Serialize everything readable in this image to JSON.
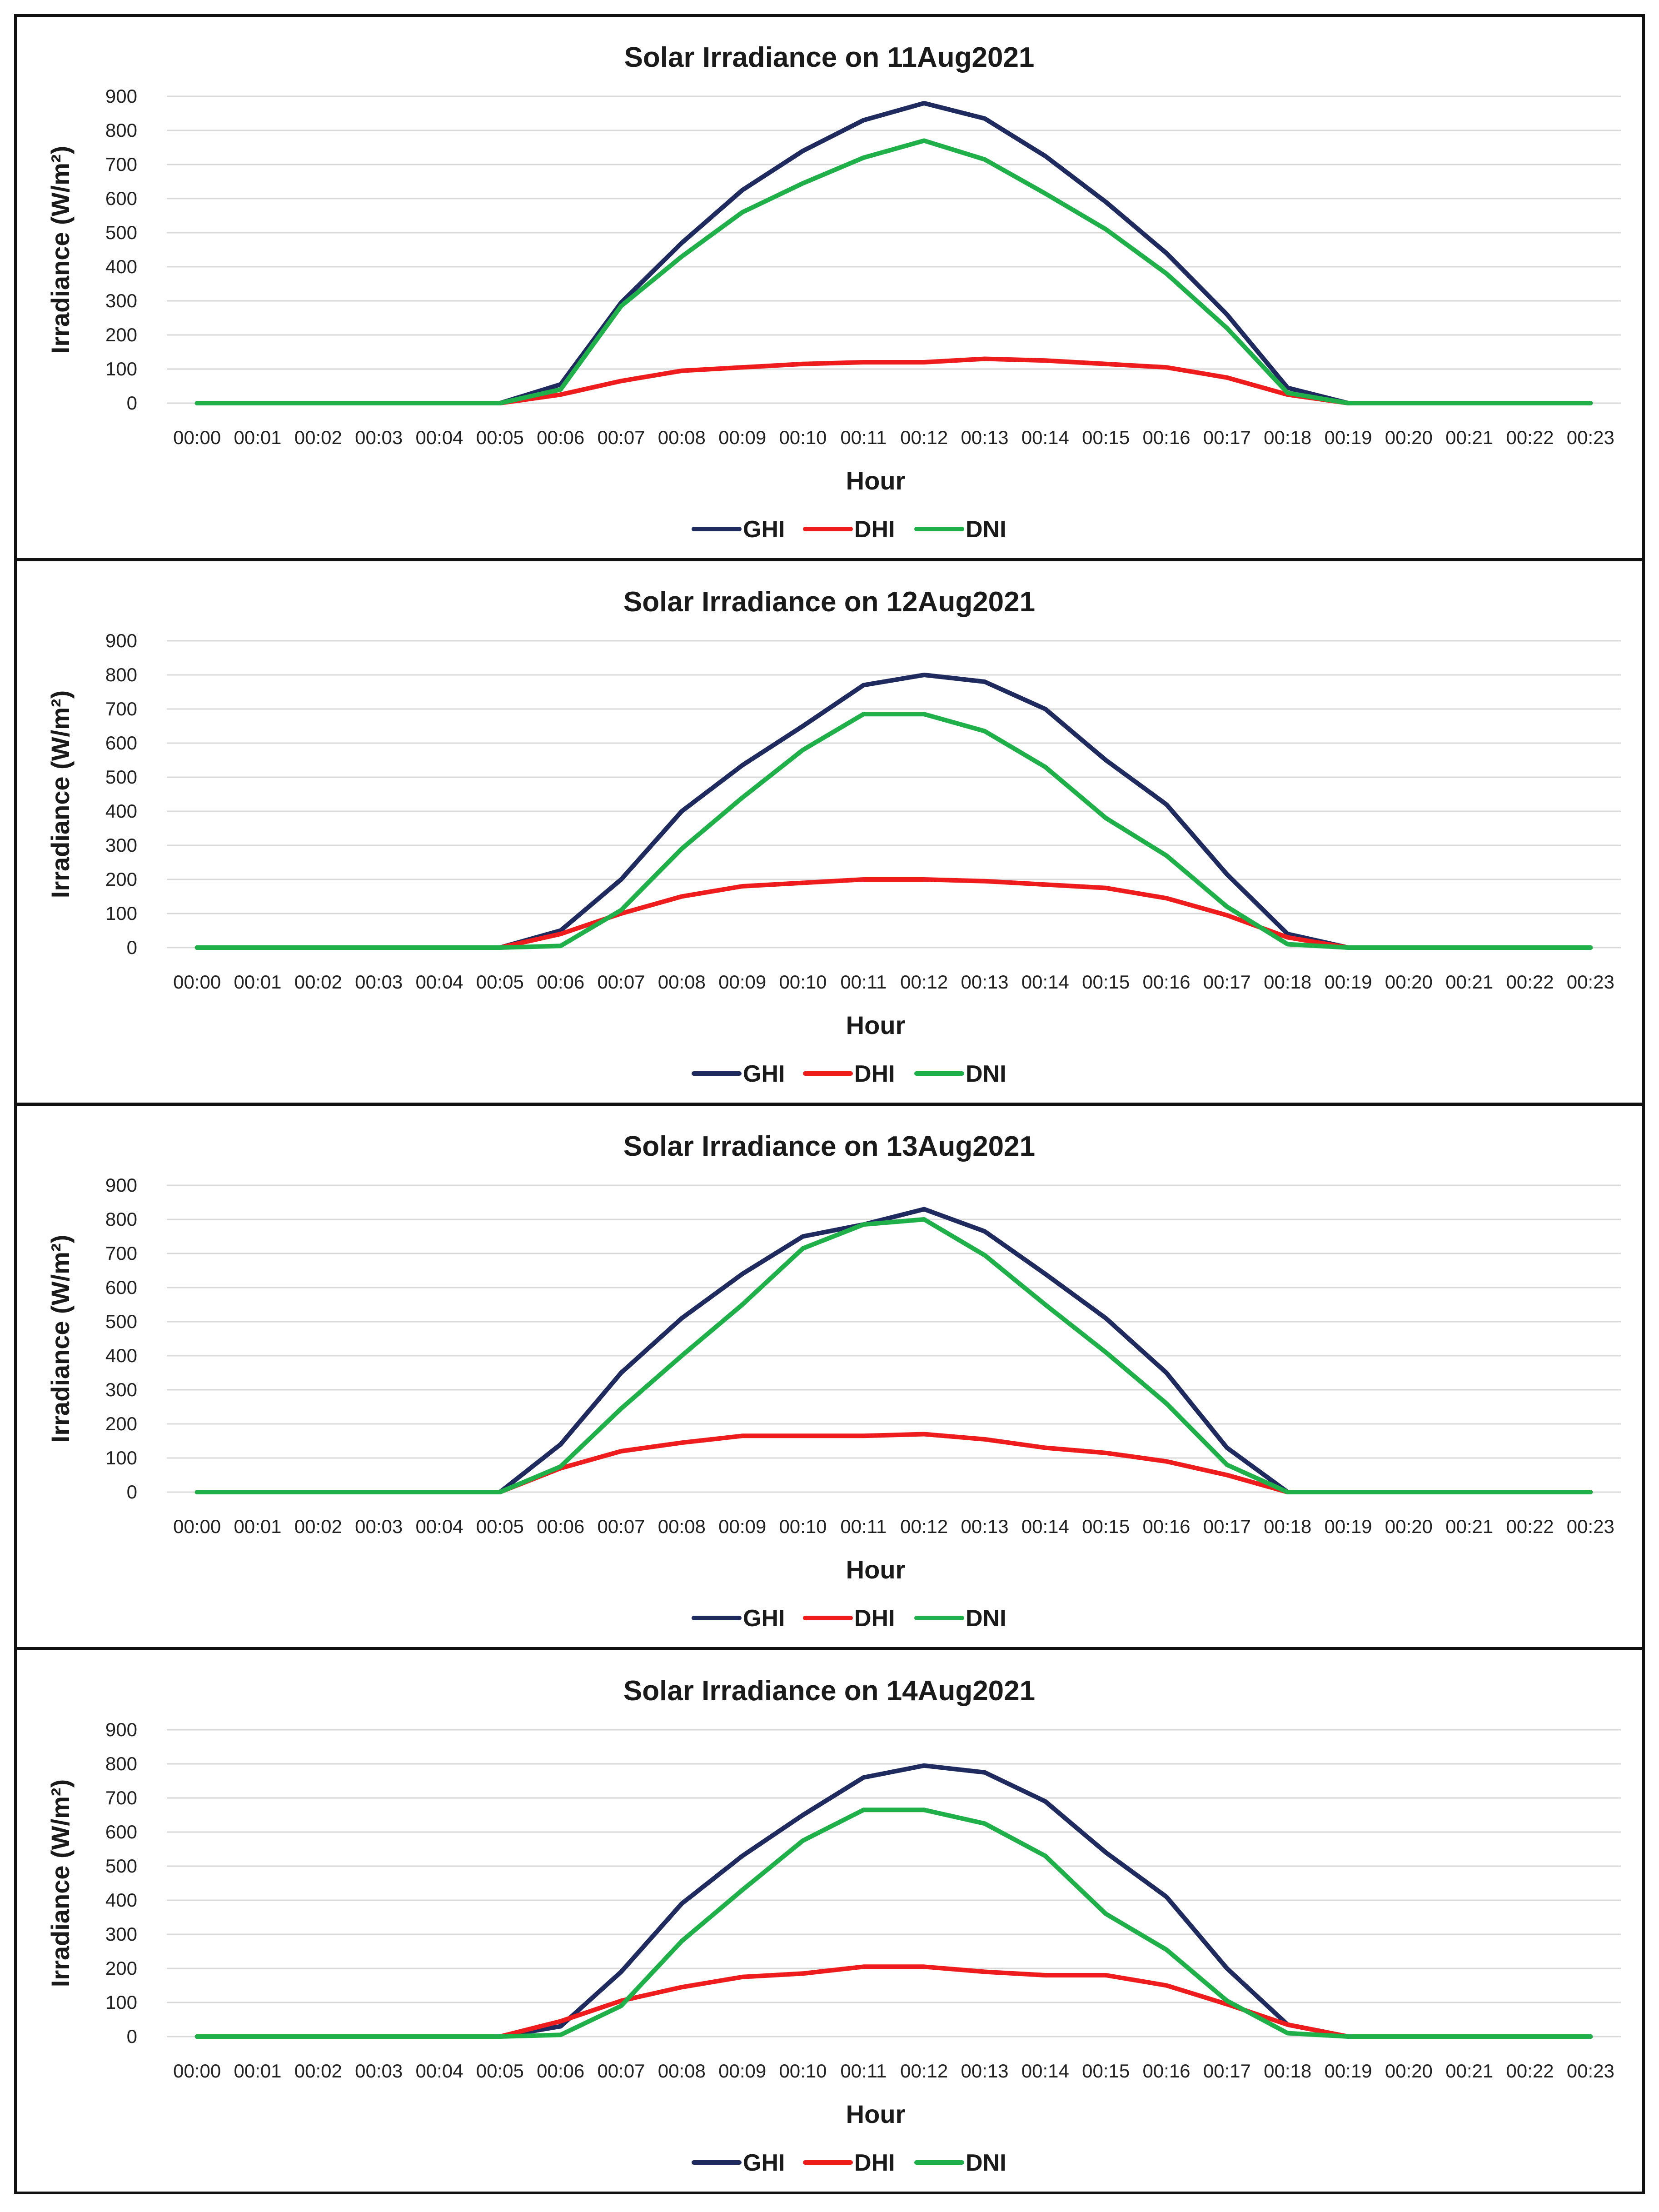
{
  "chart_data": [
    {
      "type": "line",
      "title": "Solar Irradiance on 11Aug2021",
      "xlabel": "Hour",
      "ylabel": "Irradiance (W/m²)",
      "ylim": [
        0,
        900
      ],
      "yticks": [
        "0",
        "100",
        "200",
        "300",
        "400",
        "500",
        "600",
        "700",
        "800",
        "900"
      ],
      "grid": true,
      "legend_position": "bottom-center",
      "categories": [
        "00:00",
        "00:01",
        "00:02",
        "00:03",
        "00:04",
        "00:05",
        "00:06",
        "00:07",
        "00:08",
        "00:09",
        "00:10",
        "00:11",
        "00:12",
        "00:13",
        "00:14",
        "00:15",
        "00:16",
        "00:17",
        "00:18",
        "00:19",
        "00:20",
        "00:21",
        "00:22",
        "00:23"
      ],
      "series": [
        {
          "name": "GHI",
          "color": "#1f2a5e",
          "values": [
            0,
            0,
            0,
            0,
            0,
            0,
            55,
            295,
            470,
            625,
            740,
            830,
            880,
            835,
            725,
            590,
            440,
            260,
            45,
            0,
            0,
            0,
            0,
            0
          ]
        },
        {
          "name": "DHI",
          "color": "#ee1c1c",
          "values": [
            0,
            0,
            0,
            0,
            0,
            0,
            25,
            65,
            95,
            105,
            115,
            120,
            120,
            130,
            125,
            115,
            105,
            75,
            25,
            0,
            0,
            0,
            0,
            0
          ]
        },
        {
          "name": "DNI",
          "color": "#1fb04a",
          "values": [
            0,
            0,
            0,
            0,
            0,
            0,
            40,
            285,
            430,
            560,
            645,
            720,
            770,
            715,
            615,
            510,
            380,
            220,
            30,
            0,
            0,
            0,
            0,
            0
          ]
        }
      ]
    },
    {
      "type": "line",
      "title": "Solar Irradiance on 12Aug2021",
      "xlabel": "Hour",
      "ylabel": "Irradiance (W/m²)",
      "ylim": [
        0,
        900
      ],
      "yticks": [
        "0",
        "100",
        "200",
        "300",
        "400",
        "500",
        "600",
        "700",
        "800",
        "900"
      ],
      "grid": true,
      "legend_position": "bottom-center",
      "categories": [
        "00:00",
        "00:01",
        "00:02",
        "00:03",
        "00:04",
        "00:05",
        "00:06",
        "00:07",
        "00:08",
        "00:09",
        "00:10",
        "00:11",
        "00:12",
        "00:13",
        "00:14",
        "00:15",
        "00:16",
        "00:17",
        "00:18",
        "00:19",
        "00:20",
        "00:21",
        "00:22",
        "00:23"
      ],
      "series": [
        {
          "name": "GHI",
          "color": "#1f2a5e",
          "values": [
            0,
            0,
            0,
            0,
            0,
            0,
            50,
            200,
            400,
            535,
            650,
            770,
            800,
            780,
            700,
            550,
            420,
            215,
            40,
            0,
            0,
            0,
            0,
            0
          ]
        },
        {
          "name": "DHI",
          "color": "#ee1c1c",
          "values": [
            0,
            0,
            0,
            0,
            0,
            0,
            40,
            100,
            150,
            180,
            190,
            200,
            200,
            195,
            185,
            175,
            145,
            95,
            30,
            0,
            0,
            0,
            0,
            0
          ]
        },
        {
          "name": "DNI",
          "color": "#1fb04a",
          "values": [
            0,
            0,
            0,
            0,
            0,
            0,
            5,
            110,
            290,
            440,
            580,
            685,
            685,
            635,
            530,
            380,
            270,
            120,
            10,
            0,
            0,
            0,
            0,
            0
          ]
        }
      ]
    },
    {
      "type": "line",
      "title": "Solar Irradiance on 13Aug2021",
      "xlabel": "Hour",
      "ylabel": "Irradiance (W/m²)",
      "ylim": [
        0,
        900
      ],
      "yticks": [
        "0",
        "100",
        "200",
        "300",
        "400",
        "500",
        "600",
        "700",
        "800",
        "900"
      ],
      "grid": true,
      "legend_position": "bottom-center",
      "categories": [
        "00:00",
        "00:01",
        "00:02",
        "00:03",
        "00:04",
        "00:05",
        "00:06",
        "00:07",
        "00:08",
        "00:09",
        "00:10",
        "00:11",
        "00:12",
        "00:13",
        "00:14",
        "00:15",
        "00:16",
        "00:17",
        "00:18",
        "00:19",
        "00:20",
        "00:21",
        "00:22",
        "00:23"
      ],
      "series": [
        {
          "name": "GHI",
          "color": "#1f2a5e",
          "values": [
            0,
            0,
            0,
            0,
            0,
            0,
            140,
            350,
            510,
            640,
            750,
            785,
            830,
            765,
            640,
            510,
            350,
            130,
            0,
            0,
            0,
            0,
            0,
            0
          ]
        },
        {
          "name": "DHI",
          "color": "#ee1c1c",
          "values": [
            0,
            0,
            0,
            0,
            0,
            0,
            70,
            120,
            145,
            165,
            165,
            165,
            170,
            155,
            130,
            115,
            90,
            50,
            0,
            0,
            0,
            0,
            0,
            0
          ]
        },
        {
          "name": "DNI",
          "color": "#1fb04a",
          "values": [
            0,
            0,
            0,
            0,
            0,
            0,
            75,
            245,
            400,
            550,
            715,
            785,
            800,
            695,
            550,
            410,
            260,
            80,
            0,
            0,
            0,
            0,
            0,
            0
          ]
        }
      ]
    },
    {
      "type": "line",
      "title": "Solar Irradiance on 14Aug2021",
      "xlabel": "Hour",
      "ylabel": "Irradiance (W/m²)",
      "ylim": [
        0,
        900
      ],
      "yticks": [
        "0",
        "100",
        "200",
        "300",
        "400",
        "500",
        "600",
        "700",
        "800",
        "900"
      ],
      "grid": true,
      "legend_position": "bottom-center",
      "categories": [
        "00:00",
        "00:01",
        "00:02",
        "00:03",
        "00:04",
        "00:05",
        "00:06",
        "00:07",
        "00:08",
        "00:09",
        "00:10",
        "00:11",
        "00:12",
        "00:13",
        "00:14",
        "00:15",
        "00:16",
        "00:17",
        "00:18",
        "00:19",
        "00:20",
        "00:21",
        "00:22",
        "00:23"
      ],
      "series": [
        {
          "name": "GHI",
          "color": "#1f2a5e",
          "values": [
            0,
            0,
            0,
            0,
            0,
            0,
            30,
            190,
            390,
            530,
            650,
            760,
            795,
            775,
            690,
            540,
            410,
            200,
            35,
            0,
            0,
            0,
            0,
            0
          ]
        },
        {
          "name": "DHI",
          "color": "#ee1c1c",
          "values": [
            0,
            0,
            0,
            0,
            0,
            0,
            45,
            105,
            145,
            175,
            185,
            205,
            205,
            190,
            180,
            180,
            150,
            95,
            35,
            0,
            0,
            0,
            0,
            0
          ]
        },
        {
          "name": "DNI",
          "color": "#1fb04a",
          "values": [
            0,
            0,
            0,
            0,
            0,
            0,
            5,
            90,
            280,
            430,
            575,
            665,
            665,
            625,
            530,
            360,
            255,
            105,
            10,
            0,
            0,
            0,
            0,
            0
          ]
        }
      ]
    }
  ]
}
